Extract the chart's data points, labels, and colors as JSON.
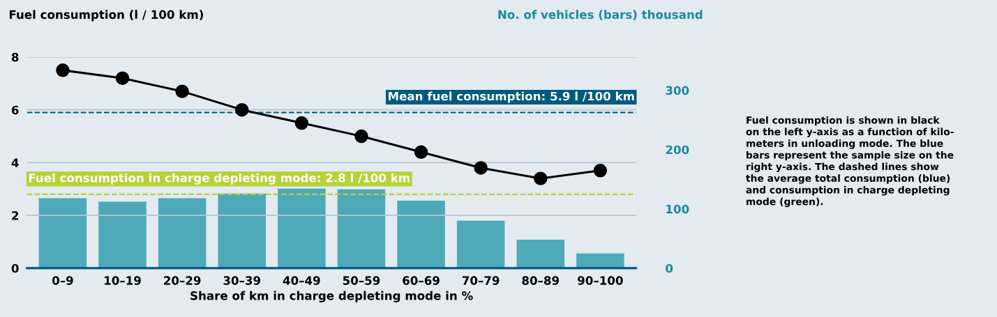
{
  "chart_data": {
    "type": "bar",
    "ylabel": "Fuel consumption (l / 100 km)",
    "y2label": "No. of vehicles (bars) thousand",
    "xlabel": "Share of km in charge depleting mode in %",
    "categories": [
      "0–9",
      "10–19",
      "20–29",
      "30–39",
      "40–49",
      "50–59",
      "60–69",
      "70–79",
      "80–89",
      "90–100"
    ],
    "series": [
      {
        "axis": "y2",
        "color": "#4ea9b8",
        "values": [
          118,
          112,
          118,
          126,
          134,
          133,
          114,
          80,
          48,
          25
        ]
      },
      {
        "type": "line",
        "axis": "y",
        "color": "#000000",
        "marker": "circle",
        "line_style": "solid",
        "values": [
          7.5,
          7.2,
          6.7,
          6.0,
          5.5,
          5.0,
          4.4,
          3.8,
          3.4,
          3.7
        ]
      }
    ],
    "ylim": [
      0,
      8
    ],
    "yticks": [
      0,
      2,
      4,
      6,
      8
    ],
    "y2lim": [
      0,
      356
    ],
    "y2ticks": [
      0,
      100,
      200,
      300
    ],
    "grid": "y",
    "ref_lines": [
      {
        "axis": "y",
        "value": 5.9,
        "label": "Mean fuel consumption: 5.9 l /100 km",
        "color": "#005b7f",
        "line_style": "dashed"
      },
      {
        "axis": "y",
        "value": 2.8,
        "label": "Fuel consumption in charge depleting mode: 2.8 l /100 km",
        "color": "#b5d334",
        "line_style": "dashed"
      }
    ],
    "annotations": [
      "Fuel consumption is shown in black\non the left y-axis as a function of kilo-\nmeters in unloading mode. The blue\nbars represent the sample size on the\nright y-axis. The dashed lines show\nthe average total consumption (blue)\nand consumption in charge depleting\nmode (green)."
    ]
  }
}
